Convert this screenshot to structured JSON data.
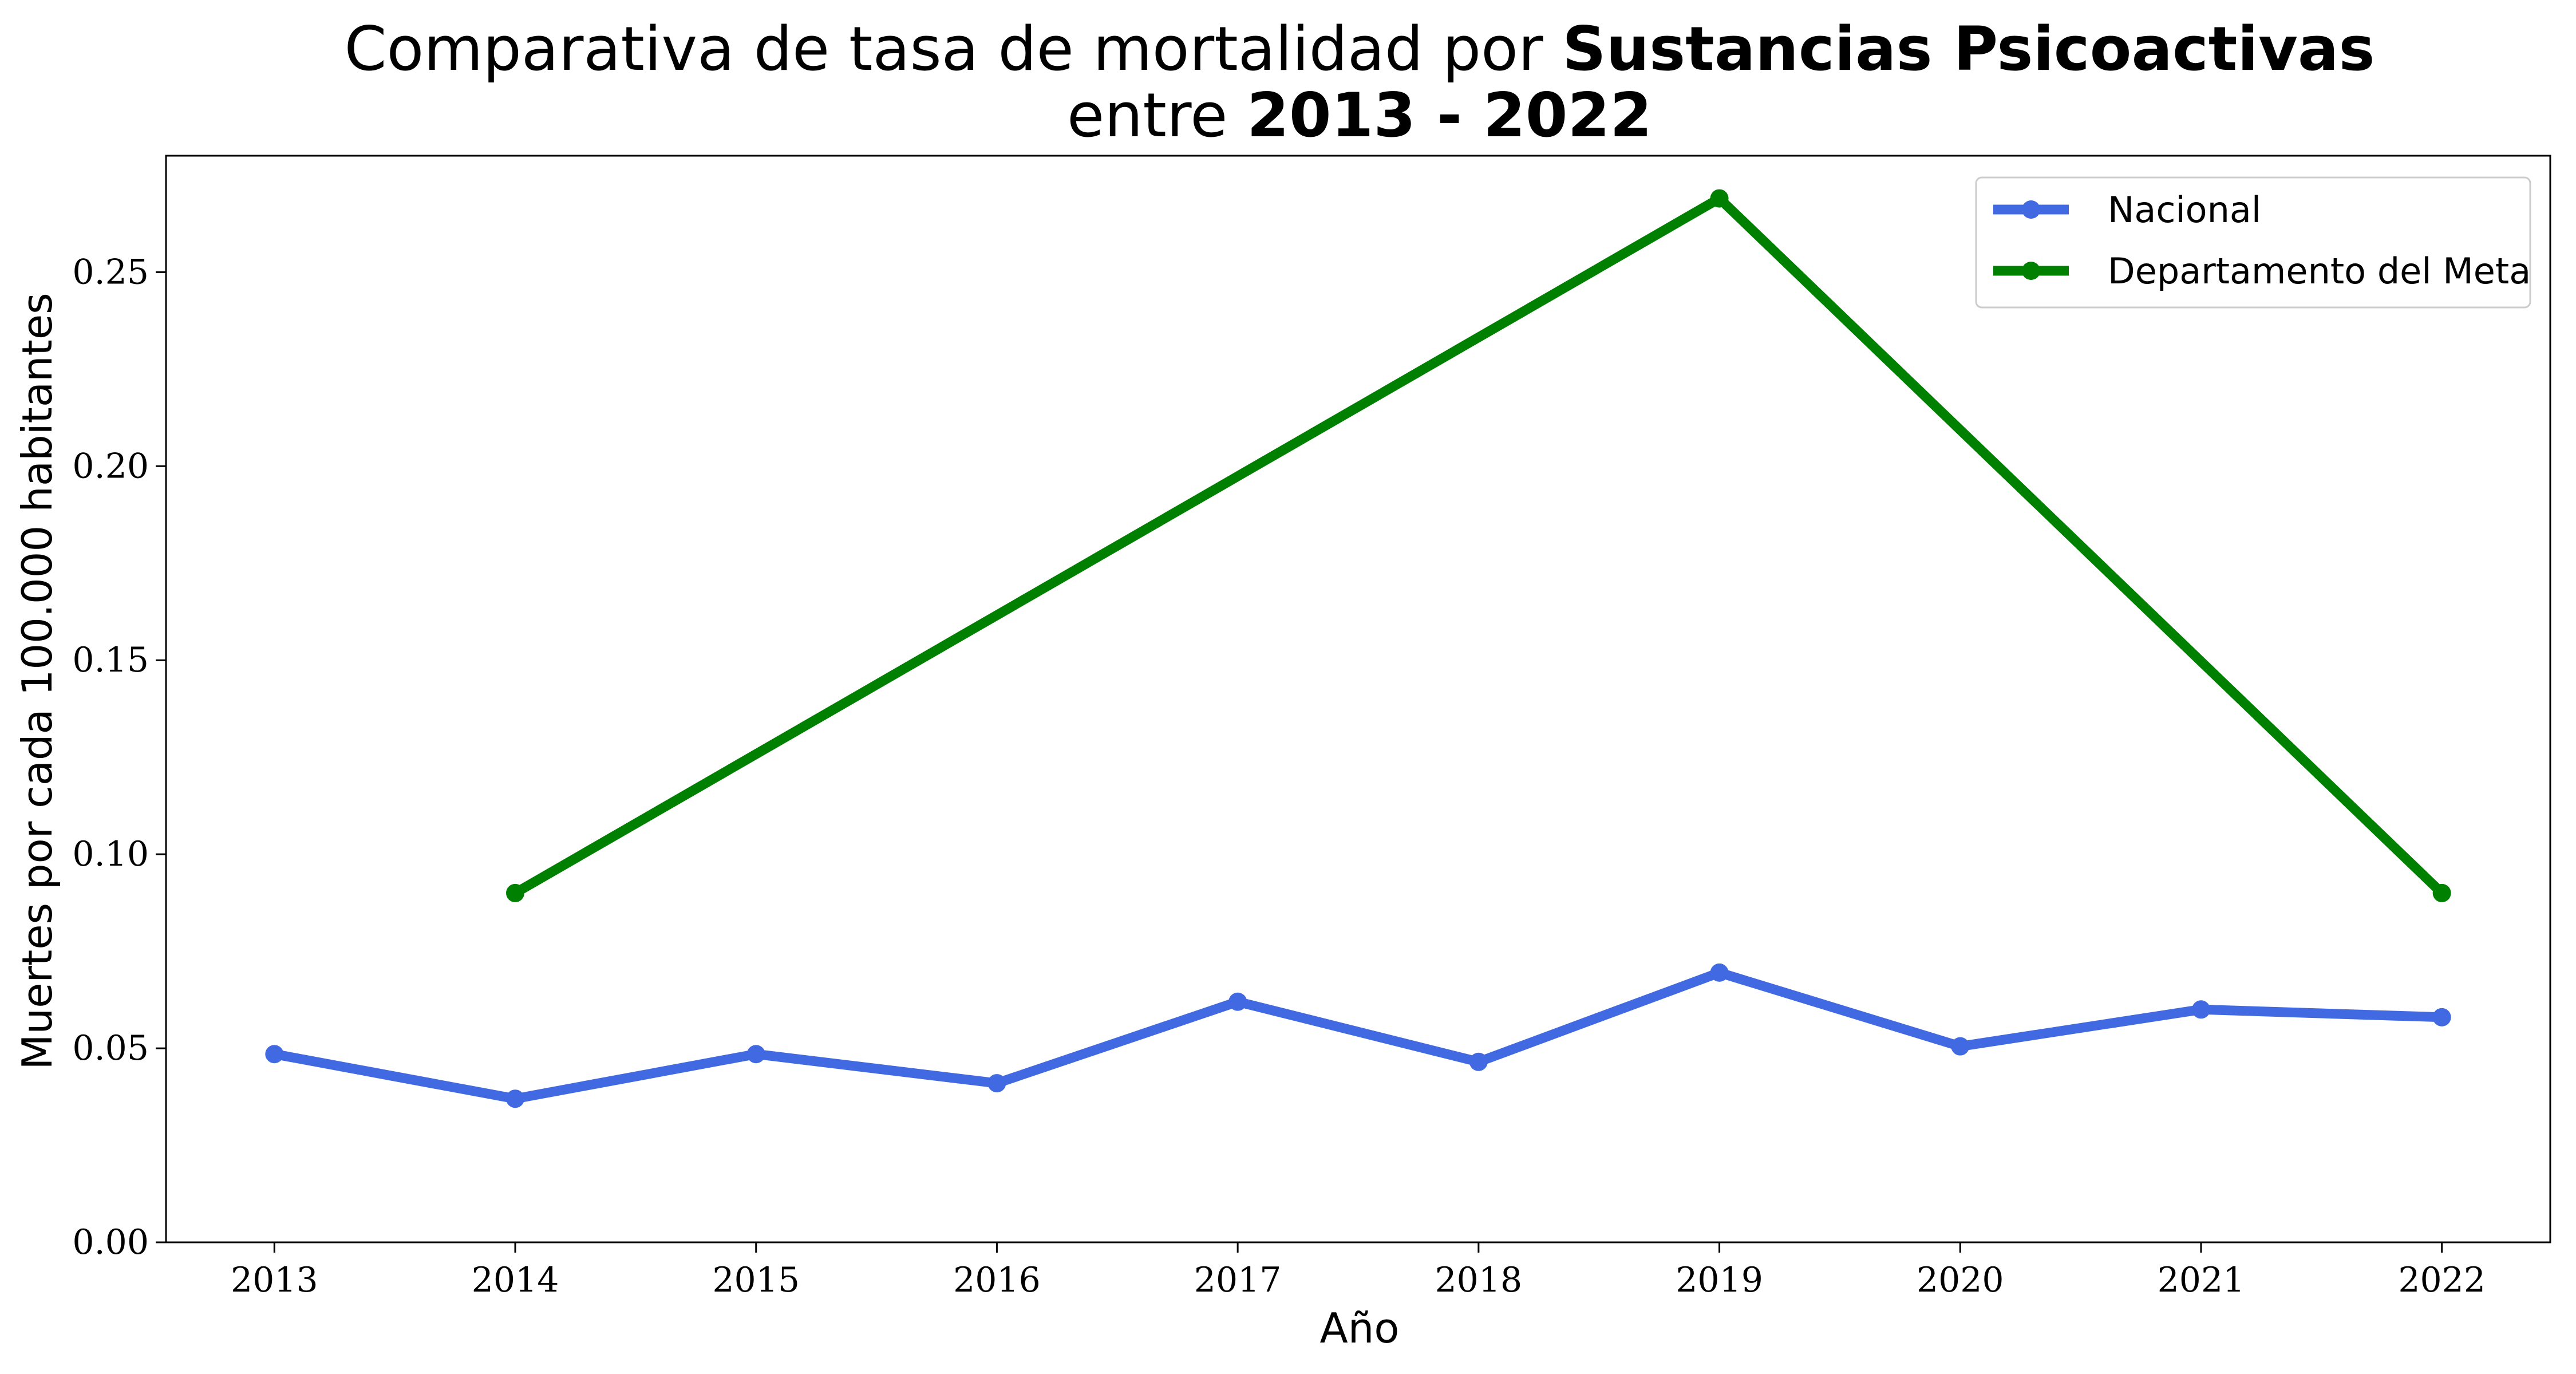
{
  "chart_data": {
    "type": "line",
    "title": {
      "line1_regular": "Comparativa de tasa de mortalidad por ",
      "line1_bold": "Sustancias Psicoactivas",
      "line2_regular": "entre ",
      "line2_bold": "2013 - 2022"
    },
    "xlabel": "Año",
    "ylabel": "Muertes por cada 100.000 habitantes",
    "x": [
      2013,
      2014,
      2015,
      2016,
      2017,
      2018,
      2019,
      2020,
      2021,
      2022
    ],
    "x_tick_labels": [
      "2013",
      "2014",
      "2015",
      "2016",
      "2017",
      "2018",
      "2019",
      "2020",
      "2021",
      "2022"
    ],
    "y_ticks": [
      0.0,
      0.05,
      0.1,
      0.15,
      0.2,
      0.25
    ],
    "y_tick_labels": [
      "0.00",
      "0.05",
      "0.10",
      "0.15",
      "0.20",
      "0.25"
    ],
    "xlim": [
      2012.55,
      2022.45
    ],
    "ylim": [
      0,
      0.28
    ],
    "grid": false,
    "legend_position": "upper right",
    "series": [
      {
        "name": "Nacional",
        "color": "#4169e1",
        "x": [
          2013,
          2014,
          2015,
          2016,
          2017,
          2018,
          2019,
          2020,
          2021,
          2022
        ],
        "values": [
          0.0485,
          0.037,
          0.0485,
          0.041,
          0.062,
          0.0465,
          0.0695,
          0.0505,
          0.06,
          0.058
        ]
      },
      {
        "name": "Departamento del Meta",
        "color": "#008000",
        "x": [
          2014,
          2019,
          2022
        ],
        "values": [
          0.09,
          0.269,
          0.09
        ]
      }
    ]
  }
}
